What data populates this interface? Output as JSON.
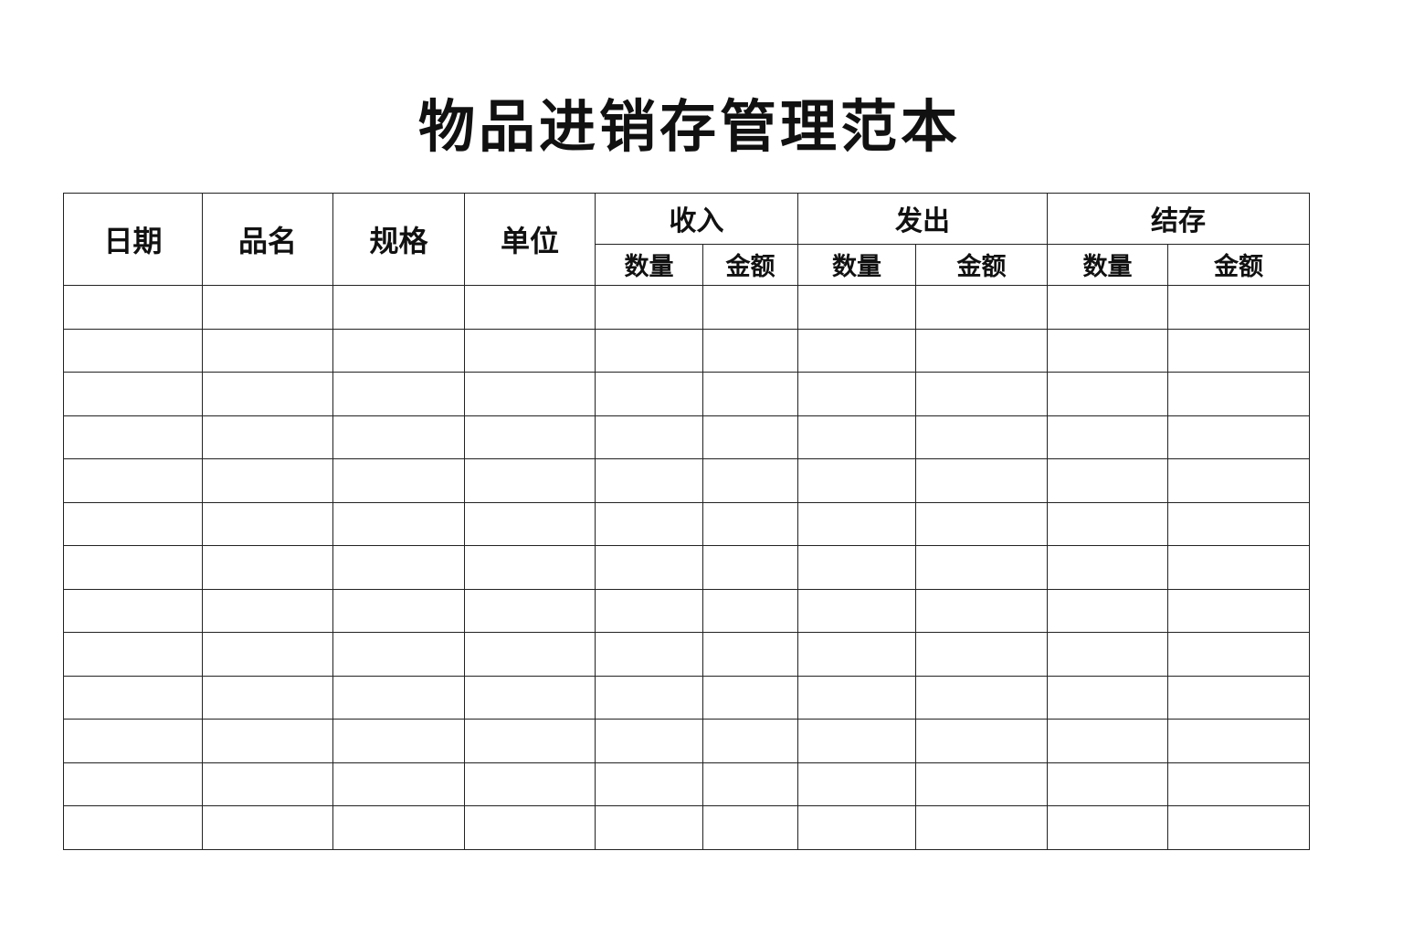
{
  "title": "物品进销存管理范本",
  "table": {
    "columns": [
      "日期",
      "品名",
      "规格",
      "单位"
    ],
    "groups": [
      {
        "label": "收入",
        "sub": [
          "数量",
          "金额"
        ]
      },
      {
        "label": "发出",
        "sub": [
          "数量",
          "金额"
        ]
      },
      {
        "label": "结存",
        "sub": [
          "数量",
          "金额"
        ]
      }
    ]
  }
}
